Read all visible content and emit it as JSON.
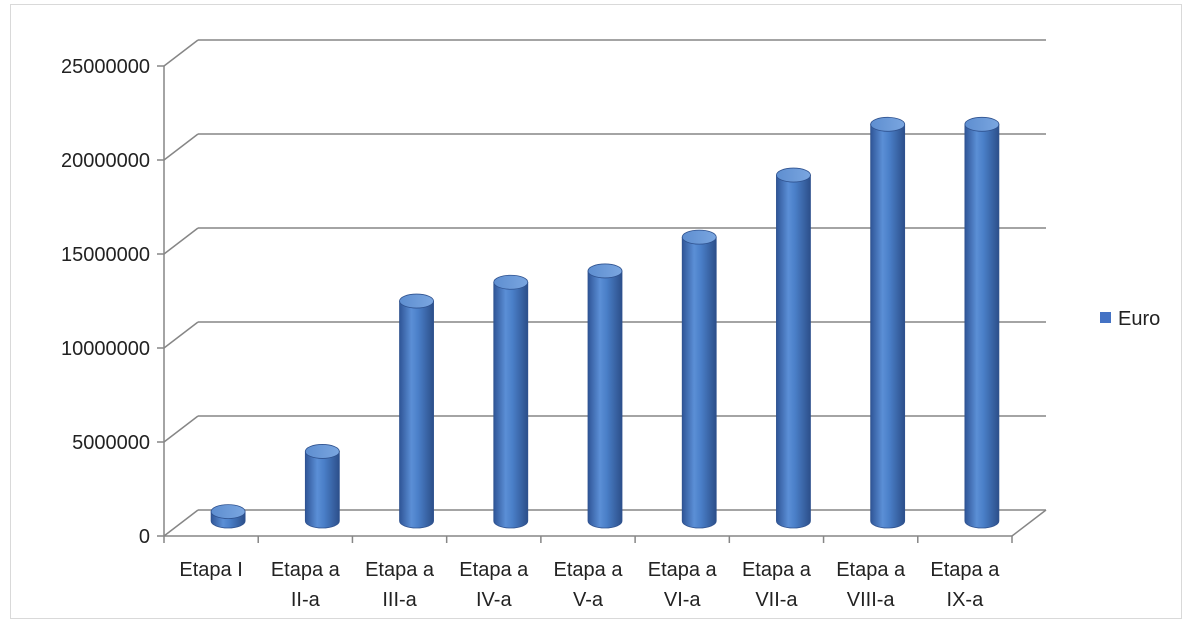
{
  "chart_data": {
    "type": "bar",
    "style": "3d-cylinder",
    "categories": [
      [
        "Etapa I"
      ],
      [
        "Etapa a",
        "II-a"
      ],
      [
        "Etapa a",
        "III-a"
      ],
      [
        "Etapa a",
        "IV-a"
      ],
      [
        "Etapa a",
        "V-a"
      ],
      [
        "Etapa a",
        "VI-a"
      ],
      [
        "Etapa a",
        "VII-a"
      ],
      [
        "Etapa a",
        "VIII-a"
      ],
      [
        "Etapa a",
        "IX-a"
      ]
    ],
    "series": [
      {
        "name": "Euro",
        "color": "#4472c4",
        "values": [
          500000,
          3700000,
          11700000,
          12700000,
          13300000,
          15100000,
          18400000,
          21100000,
          21100000
        ]
      }
    ],
    "yticks": [
      0,
      5000000,
      10000000,
      15000000,
      20000000,
      25000000
    ],
    "ylim": [
      0,
      25000000
    ],
    "grid": true,
    "legend": "right"
  }
}
